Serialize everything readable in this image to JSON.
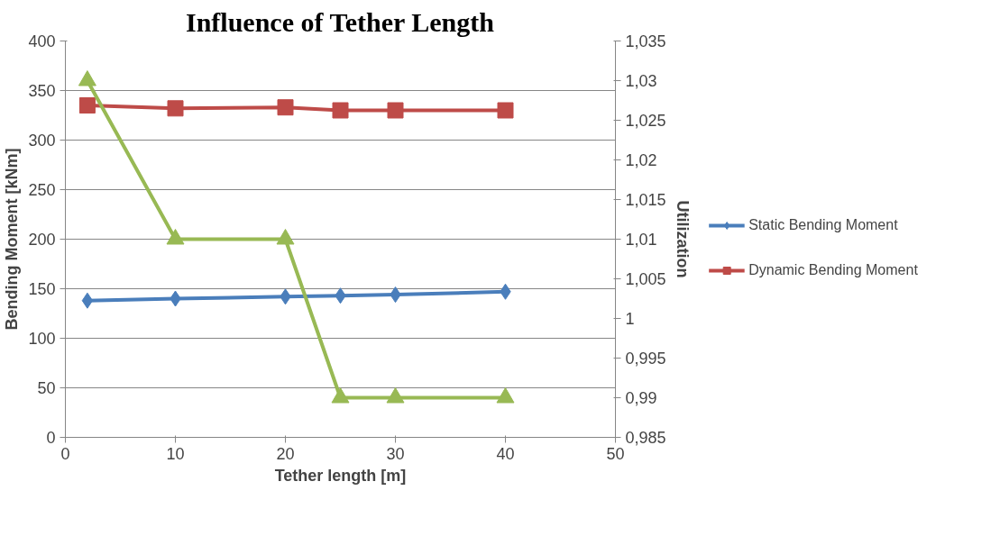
{
  "chart_data": {
    "type": "line",
    "title": "Influence of Tether Length",
    "xlabel": "Tether length [m]",
    "ylabel": "Bending Moment [kNm]",
    "y2label": "Utilization",
    "x": [
      2,
      10,
      20,
      25,
      30,
      40
    ],
    "series": [
      {
        "name": "Static Bending Moment",
        "color": "#4a7ebb",
        "marker": "diamond",
        "values": [
          138,
          140,
          142,
          143,
          144,
          147
        ]
      },
      {
        "name": "Dynamic Bending Moment",
        "color": "#be4b48",
        "marker": "square",
        "values": [
          335,
          332,
          333,
          330,
          330,
          330
        ]
      },
      {
        "color": "#98b954",
        "marker": "triangle",
        "axis": "y2",
        "values": [
          1.03,
          1.01,
          1.01,
          0.99,
          0.99,
          0.99
        ]
      }
    ],
    "xlim": [
      0,
      50
    ],
    "xticks": [
      0,
      10,
      20,
      30,
      40,
      50
    ],
    "ylim": [
      0,
      400
    ],
    "yticks": [
      0,
      50,
      100,
      150,
      200,
      250,
      300,
      350,
      400
    ],
    "y2lim": [
      0.985,
      1.035
    ],
    "y2ticks": [
      {
        "value": 0.985,
        "label": "0,985"
      },
      {
        "value": 0.99,
        "label": "0,99"
      },
      {
        "value": 0.995,
        "label": "0,995"
      },
      {
        "value": 1,
        "label": "1"
      },
      {
        "value": 1.005,
        "label": "1,005"
      },
      {
        "value": 1.01,
        "label": "1,01"
      },
      {
        "value": 1.015,
        "label": "1,015"
      },
      {
        "value": 1.02,
        "label": "1,02"
      },
      {
        "value": 1.025,
        "label": "1,025"
      },
      {
        "value": 1.03,
        "label": "1,03"
      },
      {
        "value": 1.035,
        "label": "1,035"
      }
    ],
    "grid": "y",
    "legend": "right",
    "line_style": "solid"
  }
}
